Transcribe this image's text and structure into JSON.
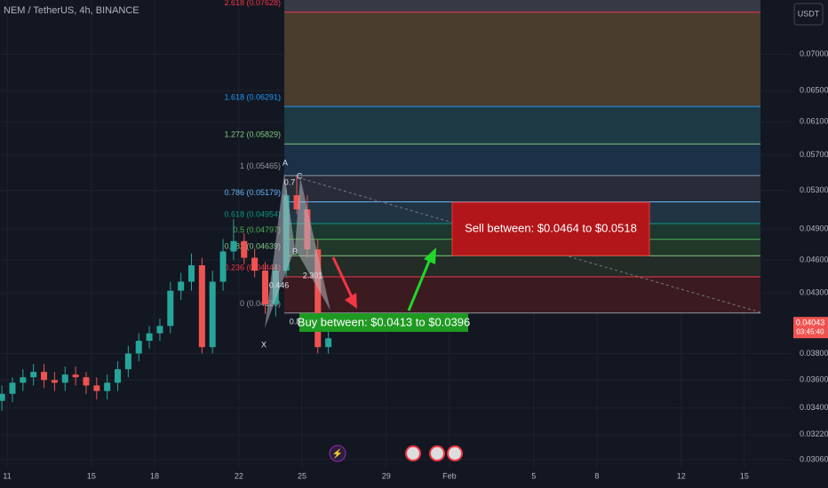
{
  "chart_data": {
    "type": "candlestick",
    "title": "NEM / TetherUS, 4h, BINANCE",
    "axis_unit": "USDT",
    "x": [
      10.75,
      11.25,
      11.75,
      12.25,
      12.75,
      13.25,
      13.75,
      14.25,
      14.75,
      15.25,
      15.75,
      16.25,
      16.75,
      17.25,
      17.75,
      18.25,
      18.75,
      19.25,
      19.75,
      20.25,
      20.75,
      21.25,
      21.75,
      22.25,
      22.75,
      23.25,
      23.75,
      24.25,
      24.75,
      25.25,
      25.75,
      26.25
    ],
    "open": [
      0.0345,
      0.035,
      0.0358,
      0.0362,
      0.0366,
      0.036,
      0.0358,
      0.0364,
      0.0362,
      0.0356,
      0.0352,
      0.0358,
      0.0368,
      0.038,
      0.039,
      0.0396,
      0.0402,
      0.0432,
      0.044,
      0.0455,
      0.0385,
      0.044,
      0.0468,
      0.0478,
      0.0462,
      0.045,
      0.042,
      0.045,
      0.0525,
      0.051,
      0.047,
      0.0385
    ],
    "high": [
      0.0356,
      0.0362,
      0.0368,
      0.0372,
      0.0372,
      0.0366,
      0.037,
      0.037,
      0.0366,
      0.0362,
      0.0364,
      0.0374,
      0.0386,
      0.0396,
      0.0402,
      0.0408,
      0.044,
      0.0448,
      0.0466,
      0.0462,
      0.045,
      0.048,
      0.05,
      0.0486,
      0.047,
      0.0458,
      0.0456,
      0.0532,
      0.0545,
      0.0525,
      0.048,
      0.0398
    ],
    "low": [
      0.0338,
      0.0344,
      0.0352,
      0.0356,
      0.0354,
      0.0352,
      0.0352,
      0.0356,
      0.035,
      0.0346,
      0.0346,
      0.0352,
      0.0362,
      0.0374,
      0.0384,
      0.039,
      0.0396,
      0.0424,
      0.0432,
      0.038,
      0.038,
      0.0432,
      0.046,
      0.0456,
      0.0444,
      0.0412,
      0.041,
      0.0444,
      0.0505,
      0.0462,
      0.038,
      0.038
    ],
    "close": [
      0.035,
      0.0358,
      0.0362,
      0.0366,
      0.036,
      0.0358,
      0.0364,
      0.0362,
      0.0356,
      0.0352,
      0.0358,
      0.0368,
      0.038,
      0.039,
      0.0396,
      0.0402,
      0.0432,
      0.044,
      0.0455,
      0.0385,
      0.044,
      0.0468,
      0.0478,
      0.0462,
      0.045,
      0.042,
      0.045,
      0.0525,
      0.051,
      0.047,
      0.0385,
      0.0392
    ],
    "up_color": "#26a69a",
    "down_color": "#ef5350",
    "log_scale": true,
    "xlim": [
      10.66,
      48.2
    ],
    "xticks": [
      11,
      15,
      18,
      22,
      25,
      29,
      {
        "value": 32,
        "label": "Feb"
      },
      {
        "value": 36,
        "label": "5"
      },
      {
        "value": 39,
        "label": "8"
      },
      {
        "value": 43,
        "label": "12"
      },
      {
        "value": 46,
        "label": "15"
      }
    ],
    "ylim": [
      0.03005,
      0.0782
    ],
    "yticks": [
      {
        "value": 0.07,
        "label": "0.07000"
      },
      {
        "value": 0.065,
        "label": "0.06500"
      },
      {
        "value": 0.061,
        "label": "0.06100"
      },
      {
        "value": 0.057,
        "label": "0.05700"
      },
      {
        "value": 0.053,
        "label": "0.05300"
      },
      {
        "value": 0.049,
        "label": "0.04900"
      },
      {
        "value": 0.046,
        "label": "0.04600"
      },
      {
        "value": 0.043,
        "label": "0.04300"
      },
      {
        "value": 0.038,
        "label": "0.03800"
      },
      {
        "value": 0.036,
        "label": "0.03600"
      },
      {
        "value": 0.034,
        "label": "0.03400"
      },
      {
        "value": 0.0322,
        "label": "0.03220"
      },
      {
        "value": 0.0306,
        "label": "0.03060"
      }
    ],
    "grid": true,
    "fib_levels": [
      {
        "label": "2.618 (0.07628)",
        "value": 0.07628,
        "color": "#f23645",
        "fill": "#4a3d2e"
      },
      {
        "label": "1.618 (0.06291)",
        "value": 0.06291,
        "color": "#2196f3",
        "fill": "#1d3a44"
      },
      {
        "label": "1.272 (0.05829)",
        "value": 0.05829,
        "color": "#81c784",
        "fill": "#1a3148"
      },
      {
        "label": "1 (0.05465)",
        "value": 0.05465,
        "color": "#9598a1",
        "fill": "#272c38"
      },
      {
        "label": "0.786 (0.05179)",
        "value": 0.05179,
        "color": "#64b5f6",
        "fill": "#213444"
      },
      {
        "label": "0.618 (0.04954)",
        "value": 0.04954,
        "color": "#089981",
        "fill": "#1b3730"
      },
      {
        "label": "0.5 (0.04797)",
        "value": 0.04797,
        "color": "#4caf50",
        "fill": "#21372a"
      },
      {
        "label": "0.382 (0.04639)",
        "value": 0.04639,
        "color": "#81c784",
        "fill": "#232c27"
      },
      {
        "label": "0.236 (0.04444)",
        "value": 0.04444,
        "color": "#f23645",
        "fill": "#3b1b20"
      },
      {
        "label": "0 (0.04128)",
        "value": 0.04128,
        "color": "#9598a1",
        "fill": "#3b1b20"
      }
    ],
    "pattern_labels": [
      "X",
      "A",
      "B",
      "C",
      "0.7",
      "0.446",
      "2.301",
      "0.886"
    ],
    "sell_note": "Sell between: $0.0464 to $0.0518",
    "buy_note": "Buy between: $0.0413 to $0.0396",
    "price_tag": {
      "value": 0.04043,
      "label": "0.04043",
      "countdown": "03:45:40"
    }
  }
}
